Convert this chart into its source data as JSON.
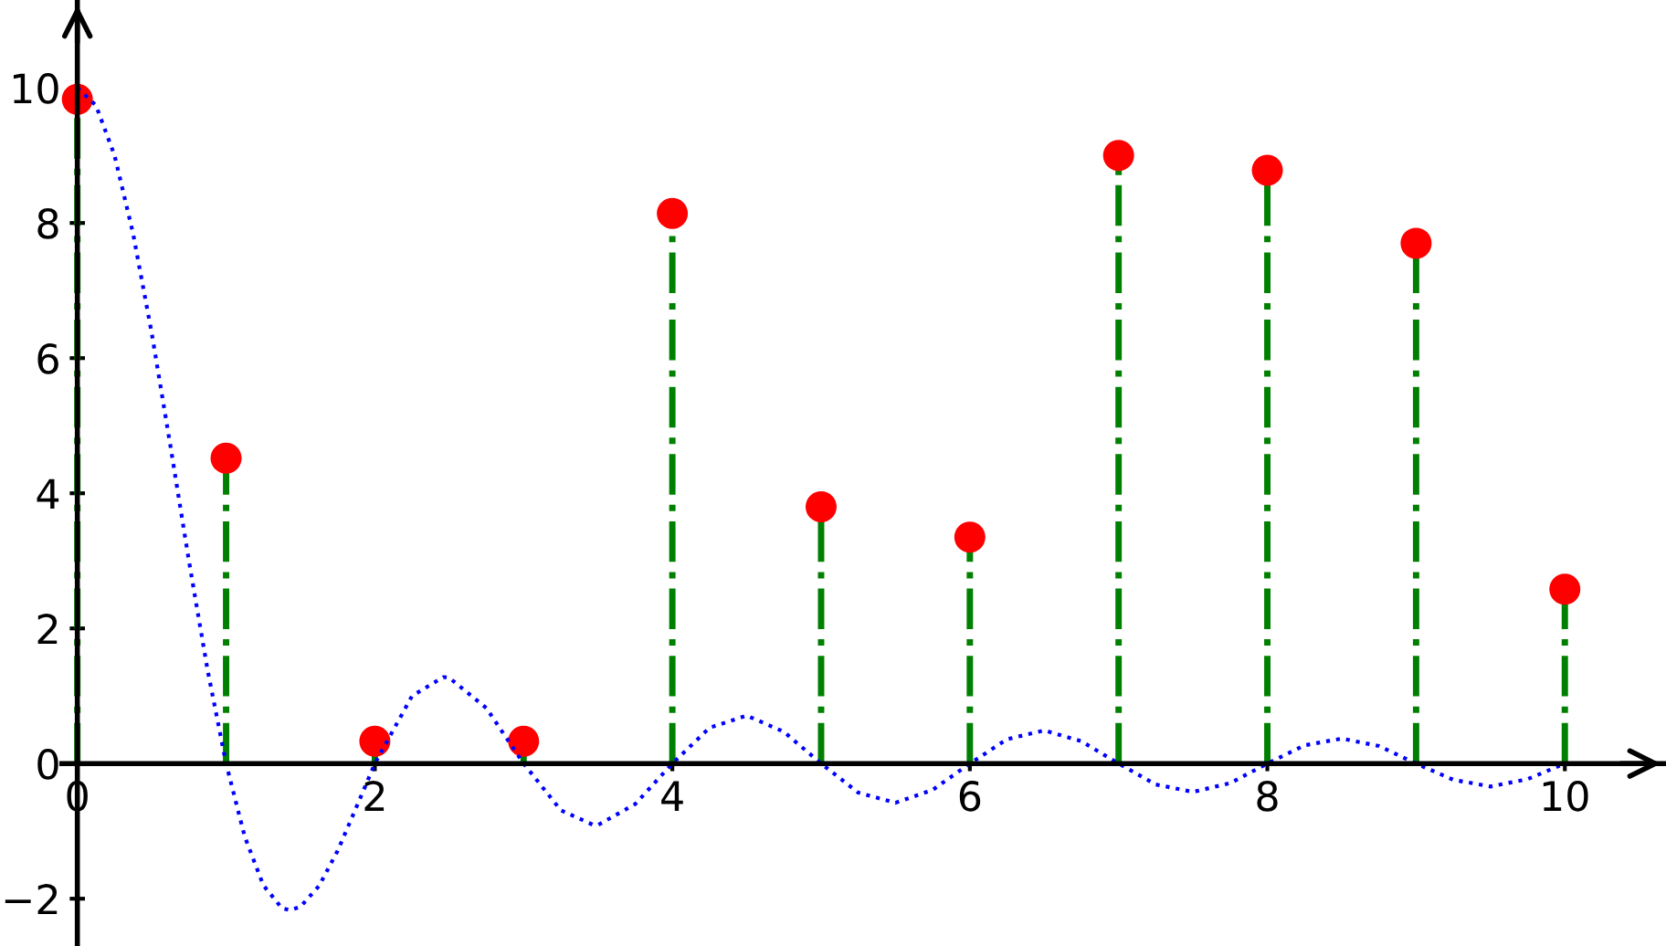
{
  "chart_data": {
    "type": "lollipop",
    "xlim": [
      -0.52,
      10.68
    ],
    "ylim": [
      -2.7,
      11.3
    ],
    "xticks": [
      0,
      2,
      4,
      6,
      8,
      10
    ],
    "yticks": [
      {
        "value": -2,
        "label": "−2"
      },
      0,
      2,
      4,
      6,
      8,
      10
    ],
    "grid": false,
    "legend": false,
    "series": [
      {
        "color": "#ff0000",
        "marker": "circle",
        "line_style": "dashdot",
        "x": [
          0,
          1,
          2,
          3,
          4,
          5,
          6,
          7,
          8,
          9,
          10
        ],
        "values": [
          9.83,
          4.52,
          0.33,
          0.33,
          8.14,
          3.8,
          3.35,
          9.0,
          8.78,
          7.7,
          2.58
        ]
      },
      {
        "type": "line",
        "color": "#0000ff",
        "marker": "none",
        "line_style": "dotted",
        "x": [
          0,
          0.125,
          0.25,
          0.375,
          0.5,
          0.625,
          0.75,
          0.875,
          1,
          1.125,
          1.25,
          1.375,
          1.43,
          1.5,
          1.625,
          1.75,
          1.875,
          2,
          2.25,
          2.46,
          2.5,
          2.75,
          3,
          3.25,
          3.47,
          3.5,
          3.75,
          4,
          4.25,
          4.5,
          4.75,
          5,
          5.25,
          5.5,
          5.75,
          6,
          6.25,
          6.5,
          6.75,
          7,
          7.25,
          7.5,
          7.75,
          8,
          8.25,
          8.5,
          8.75,
          9,
          9.25,
          9.5,
          9.75,
          10
        ],
        "values": [
          10,
          9.74,
          9.0,
          7.84,
          6.37,
          4.71,
          3.0,
          1.39,
          0,
          -1.08,
          -1.8,
          -2.14,
          -2.17,
          -2.12,
          -1.81,
          -1.29,
          -0.65,
          0,
          1.0,
          1.28,
          1.27,
          0.82,
          0,
          -0.69,
          -0.91,
          -0.91,
          -0.6,
          0,
          0.53,
          0.71,
          0.47,
          0,
          -0.43,
          -0.58,
          -0.39,
          0,
          0.36,
          0.49,
          0.33,
          0,
          -0.31,
          -0.42,
          -0.29,
          0,
          0.27,
          0.37,
          0.26,
          0,
          -0.24,
          -0.34,
          -0.23,
          0
        ]
      }
    ]
  }
}
